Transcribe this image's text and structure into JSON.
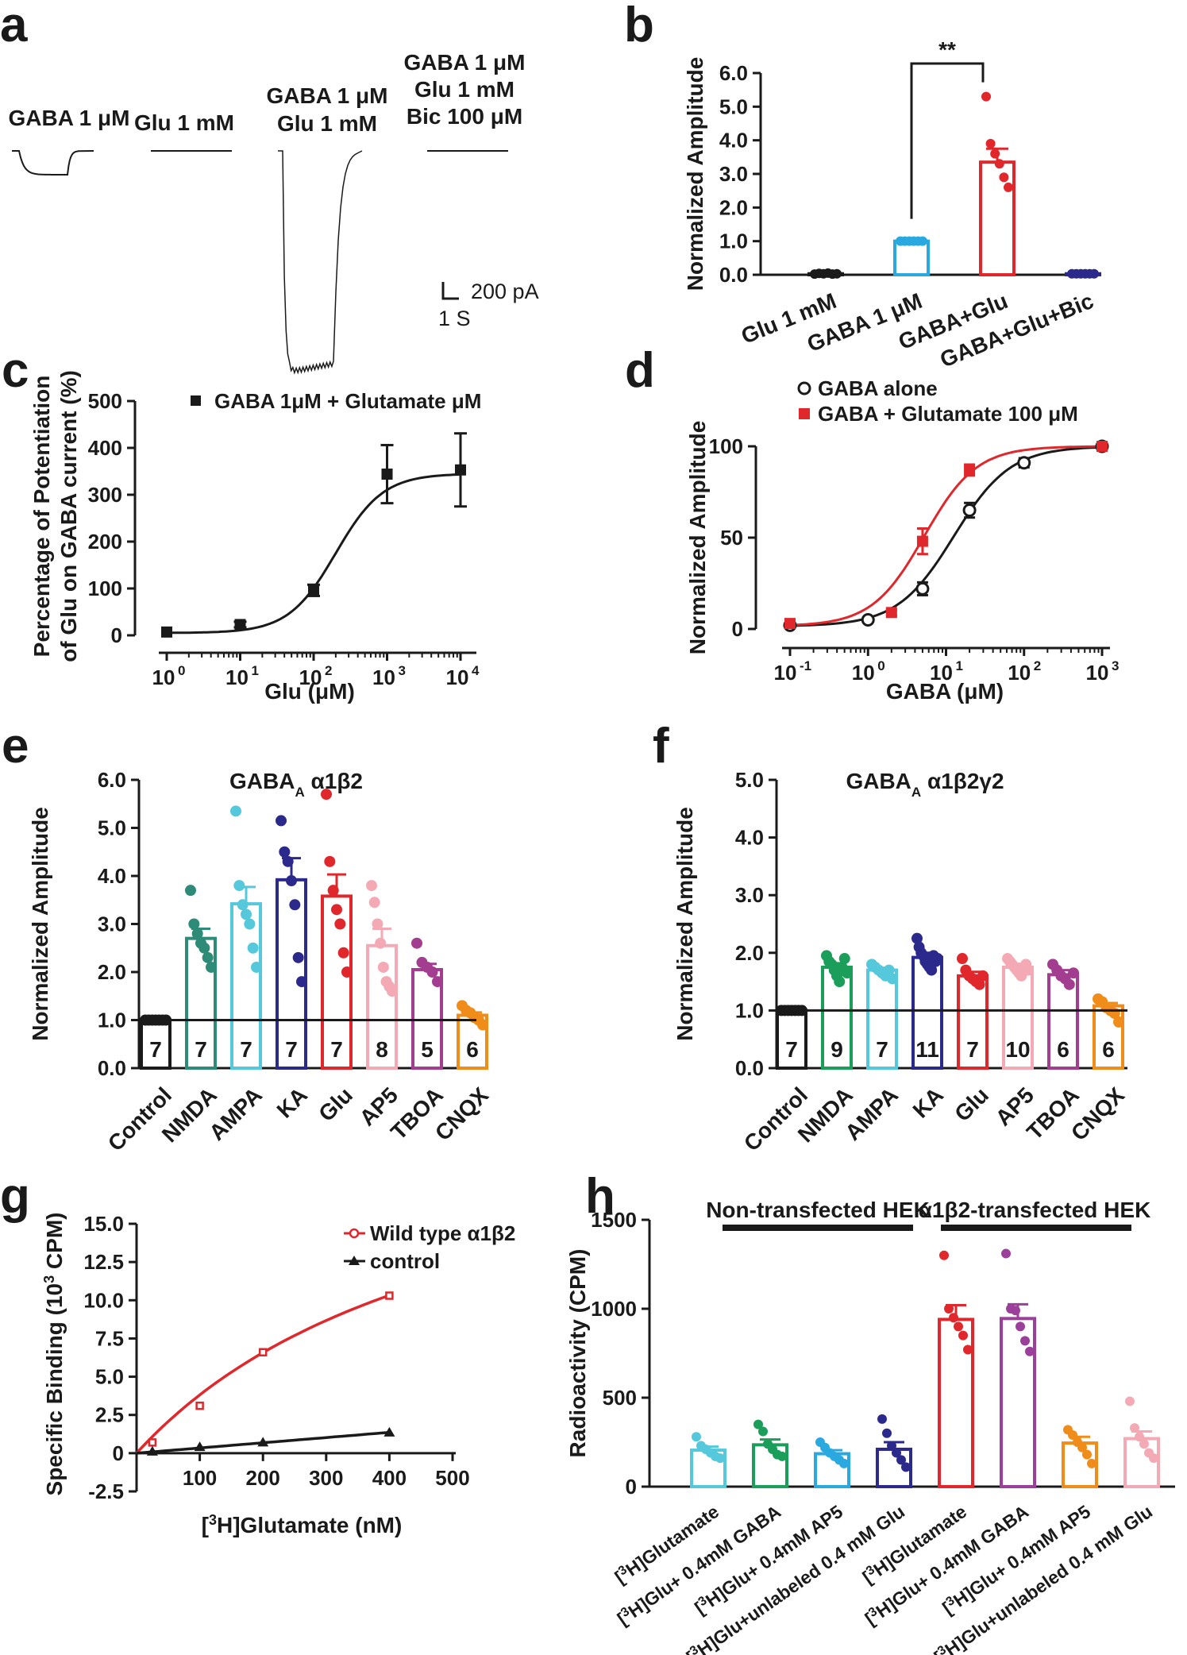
{
  "panel_labels": [
    "a",
    "b",
    "c",
    "d",
    "e",
    "f",
    "g",
    "h"
  ],
  "colors": {
    "black": "#1a1a1a",
    "blue": "#29a9e0",
    "red": "#e0272b",
    "navy": "#2b2a8c",
    "teal": "#2e8b78",
    "cyan": "#56c8dc",
    "pink": "#f4aab4",
    "purple": "#a33d8f",
    "orange": "#f08c1a",
    "green": "#1b9e5a",
    "violet": "#9b3f9a"
  },
  "panel_a": {
    "conditions": [
      {
        "lines": [
          "GABA 1 μM"
        ]
      },
      {
        "lines": [
          "Glu 1 mM"
        ]
      },
      {
        "lines": [
          "GABA 1 μM",
          "Glu 1 mM"
        ]
      },
      {
        "lines": [
          "GABA 1 μM",
          "Glu 1 mM",
          "Bic 100 μM"
        ]
      }
    ],
    "trace_amplitudes_pA": [
      60,
      0,
      560,
      0
    ],
    "scale_current": "200 pA",
    "scale_time": "1 S"
  },
  "chart_data": [
    {
      "id": "b",
      "type": "bar",
      "categories": [
        "Glu 1 mM",
        "GABA 1 μM",
        "GABA+Glu",
        "GABA+Glu+Bic"
      ],
      "values": [
        0.03,
        1.0,
        3.35,
        0.03
      ],
      "errors": [
        0.02,
        0.02,
        0.4,
        0.02
      ],
      "points": [
        [
          0.02,
          0.04,
          0.03,
          0.05,
          0.02,
          0.03
        ],
        [
          1.0,
          1.0,
          1.0,
          1.0,
          1.0,
          1.0
        ],
        [
          5.3,
          3.9,
          3.6,
          3.3,
          2.9,
          2.6
        ],
        [
          0.03,
          0.03,
          0.03,
          0.03,
          0.03,
          0.03
        ]
      ],
      "colors": [
        "#1a1a1a",
        "#29a9e0",
        "#e0272b",
        "#2b2a8c"
      ],
      "ylabel": "Normalized Amplitude",
      "ylim": [
        0,
        6.0
      ],
      "yticks": [
        "0.0",
        "1.0",
        "2.0",
        "3.0",
        "4.0",
        "5.0",
        "6.0"
      ],
      "significance": "**"
    },
    {
      "id": "c",
      "type": "scatter",
      "series": [
        {
          "name": "GABA 1μM + Glutamate μM",
          "x": [
            1,
            10,
            100,
            1000,
            10000
          ],
          "y": [
            7,
            23,
            96,
            344,
            353
          ],
          "err": [
            4,
            6,
            12,
            62,
            78
          ]
        }
      ],
      "xlabel": "Glu  (μM)",
      "ylabel_lines": [
        "Percentage of Potentiation",
        "of Glu on GABA current (%)"
      ],
      "xscale": "log",
      "xlim": [
        1,
        10000
      ],
      "ylim": [
        0,
        500
      ],
      "yticks": [
        "0",
        "100",
        "200",
        "300",
        "400",
        "500"
      ],
      "xtick_base": [
        "10",
        "10",
        "10",
        "10",
        "10"
      ],
      "xtick_exp": [
        "0",
        "1",
        "2",
        "3",
        "4"
      ]
    },
    {
      "id": "d",
      "type": "scatter",
      "series": [
        {
          "name": "GABA alone",
          "x": [
            0.1,
            1,
            5,
            20,
            100,
            1000
          ],
          "y": [
            2,
            5,
            22,
            65,
            91,
            100
          ],
          "err": [
            1,
            1,
            3.5,
            4,
            2.5,
            0
          ],
          "color": "#1a1a1a"
        },
        {
          "name": "GABA + Glutamate 100 μM",
          "x": [
            0.1,
            2,
            5,
            20,
            1000
          ],
          "y": [
            3,
            9,
            48,
            87,
            100
          ],
          "err": [
            1,
            1.5,
            7,
            3,
            0
          ],
          "color": "#e0272b"
        }
      ],
      "xlabel": "GABA  (μM)",
      "ylabel": "Normalized Amplitude",
      "xscale": "log",
      "xlim": [
        0.1,
        1000
      ],
      "ylim": [
        0,
        100
      ],
      "yticks": [
        "0",
        "50",
        "100"
      ],
      "xtick_base": [
        "10",
        "10",
        "10",
        "10",
        "10"
      ],
      "xtick_exp": [
        "-1",
        "0",
        "1",
        "2",
        "3"
      ]
    },
    {
      "id": "e",
      "type": "bar",
      "title": "GABA",
      "title_sub": "A",
      "title_suffix": " α1β2",
      "categories": [
        "Control",
        "NMDA",
        "AMPA",
        "KA",
        "Glu",
        "AP5",
        "TBOA",
        "CNQX"
      ],
      "values": [
        1.0,
        2.7,
        3.42,
        3.92,
        3.58,
        2.55,
        2.05,
        1.1
      ],
      "errors": [
        0.02,
        0.2,
        0.35,
        0.45,
        0.45,
        0.35,
        0.12,
        0.06
      ],
      "n": [
        "7",
        "7",
        "7",
        "7",
        "7",
        "8",
        "5",
        "6"
      ],
      "points": [
        [
          1,
          1,
          1,
          1,
          1,
          1,
          1
        ],
        [
          3.7,
          3.0,
          2.8,
          2.6,
          2.5,
          2.3,
          2.1
        ],
        [
          5.35,
          3.8,
          3.4,
          3.2,
          3.0,
          2.5,
          2.1
        ],
        [
          5.15,
          4.5,
          4.3,
          3.9,
          3.4,
          2.3,
          1.8
        ],
        [
          5.7,
          4.3,
          3.7,
          3.3,
          3.0,
          2.4,
          2.0
        ],
        [
          3.8,
          3.45,
          3.0,
          2.6,
          2.1,
          1.8,
          1.7,
          1.6
        ],
        [
          2.6,
          2.2,
          2.1,
          2.0,
          1.8
        ],
        [
          1.3,
          1.2,
          1.15,
          1.05,
          1.0,
          0.9
        ]
      ],
      "colors": [
        "#1a1a1a",
        "#2e8b78",
        "#56c8dc",
        "#2b2a8c",
        "#e0272b",
        "#f4aab4",
        "#a33d8f",
        "#f08c1a"
      ],
      "ylabel": "Normalized Amplitude",
      "ylim": [
        0,
        6.0
      ],
      "yticks": [
        "0.0",
        "1.0",
        "2.0",
        "3.0",
        "4.0",
        "5.0",
        "6.0"
      ],
      "reference_line": 1.0
    },
    {
      "id": "f",
      "type": "bar",
      "title": "GABA",
      "title_sub": "A",
      "title_suffix": " α1β2γ2",
      "categories": [
        "Control",
        "NMDA",
        "AMPA",
        "KA",
        "Glu",
        "AP5",
        "TBOA",
        "CNQX"
      ],
      "values": [
        1.0,
        1.75,
        1.7,
        1.92,
        1.6,
        1.75,
        1.62,
        1.08
      ],
      "errors": [
        0.02,
        0.07,
        0.04,
        0.08,
        0.07,
        0.06,
        0.08,
        0.05
      ],
      "n": [
        "7",
        "9",
        "7",
        "11",
        "7",
        "10",
        "6",
        "6"
      ],
      "points": [
        [
          1,
          1,
          1,
          1,
          1,
          1,
          1
        ],
        [
          1.95,
          1.85,
          1.8,
          1.7,
          1.6,
          1.5,
          1.75,
          1.9,
          1.65
        ],
        [
          1.8,
          1.75,
          1.7,
          1.65,
          1.6,
          1.7,
          1.55
        ],
        [
          2.25,
          2.1,
          2.0,
          1.95,
          1.85,
          1.8,
          1.75,
          1.7,
          1.95,
          1.85,
          1.9
        ],
        [
          1.9,
          1.7,
          1.6,
          1.55,
          1.5,
          1.45,
          1.6
        ],
        [
          1.9,
          1.85,
          1.8,
          1.75,
          1.7,
          1.65,
          1.6,
          1.75,
          1.8,
          1.7
        ],
        [
          1.8,
          1.7,
          1.6,
          1.55,
          1.45,
          1.65
        ],
        [
          1.2,
          1.15,
          1.05,
          1.0,
          0.95,
          0.8
        ]
      ],
      "colors": [
        "#1a1a1a",
        "#1b9e5a",
        "#56c8dc",
        "#2b2a8c",
        "#e0272b",
        "#f4aab4",
        "#a33d8f",
        "#f08c1a"
      ],
      "ylabel": "Normalized Amplitude",
      "ylim": [
        0,
        5.0
      ],
      "yticks": [
        "0.0",
        "1.0",
        "2.0",
        "3.0",
        "4.0",
        "5.0"
      ],
      "reference_line": 1.0
    },
    {
      "id": "g",
      "type": "line",
      "series": [
        {
          "name": "Wild type α1β2",
          "x": [
            25,
            100,
            200,
            400
          ],
          "y": [
            0.7,
            3.1,
            6.6,
            10.3
          ],
          "color": "#e0272b"
        },
        {
          "name": "control",
          "x": [
            25,
            100,
            200,
            400
          ],
          "y": [
            0.1,
            0.4,
            0.7,
            1.35
          ],
          "color": "#1a1a1a"
        }
      ],
      "xlabel_pre": "[",
      "xlabel_sup": "3",
      "xlabel_post": "H]Glutamate (nM)",
      "ylabel_pre": "Specific Binding (10",
      "ylabel_sup": "3",
      "ylabel_post": " CPM)",
      "xlim": [
        0,
        500
      ],
      "ylim": [
        -2.5,
        15.0
      ],
      "xticks": [
        "100",
        "200",
        "300",
        "400",
        "500"
      ],
      "yticks": [
        "-2.5",
        "0",
        "2.5",
        "5.0",
        "7.5",
        "10.0",
        "12.5",
        "15.0"
      ]
    },
    {
      "id": "h",
      "type": "bar",
      "groups": [
        "Non-transfected HEK",
        "α1β2-transfected HEK"
      ],
      "categories": [
        "H]Glutamate",
        "H]Glu+ 0.4mM GABA",
        "H]Glu+ 0.4mM AP5",
        "H]Glu+unlabeled 0.4 mM Glu",
        "H]Glutamate",
        "H]Glu+ 0.4mM GABA",
        "H]Glu+ 0.4mM AP5",
        "H]Glu+unlabeled 0.4 mM Glu"
      ],
      "cat_sup": "3",
      "values": [
        205,
        235,
        185,
        210,
        940,
        945,
        245,
        270
      ],
      "errors": [
        20,
        30,
        20,
        40,
        80,
        80,
        35,
        40
      ],
      "points": [
        [
          280,
          230,
          210,
          190,
          170,
          160
        ],
        [
          350,
          310,
          240,
          210,
          180,
          170
        ],
        [
          250,
          220,
          190,
          170,
          150,
          130
        ],
        [
          380,
          300,
          230,
          190,
          150,
          110
        ],
        [
          1300,
          1000,
          950,
          900,
          850,
          770
        ],
        [
          1310,
          1000,
          990,
          900,
          820,
          760
        ],
        [
          320,
          290,
          250,
          220,
          180,
          130
        ],
        [
          480,
          330,
          280,
          240,
          190,
          160
        ]
      ],
      "colors": [
        "#56c8dc",
        "#1b9e5a",
        "#29a9e0",
        "#2b2a8c",
        "#e0272b",
        "#9b3f9a",
        "#f08c1a",
        "#f4aab4"
      ],
      "ylabel": "Radioactivity (CPM)",
      "ylim": [
        0,
        1500
      ],
      "yticks": [
        "0",
        "500",
        "1000",
        "1500"
      ]
    }
  ]
}
